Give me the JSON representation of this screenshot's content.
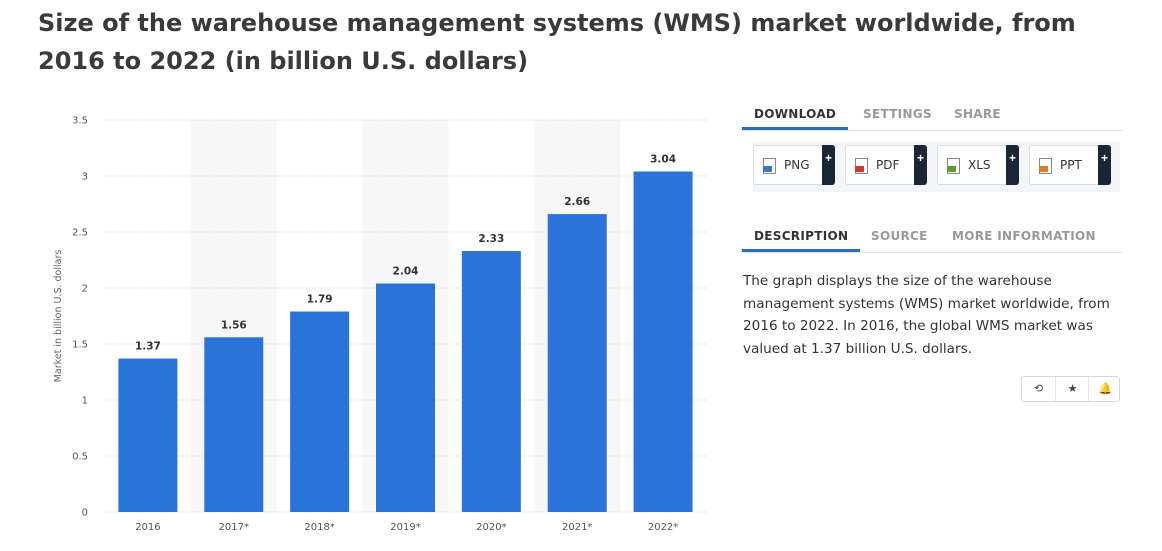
{
  "title": "Size of the warehouse management systems (WMS) market worldwide, from 2016 to 2022 (in billion U.S. dollars)",
  "chart_data": {
    "type": "bar",
    "categories": [
      "2016",
      "2017*",
      "2018*",
      "2019*",
      "2020*",
      "2021*",
      "2022*"
    ],
    "values": [
      1.37,
      1.56,
      1.79,
      2.04,
      2.33,
      2.66,
      3.04
    ],
    "value_labels": [
      "1.37",
      "1.56",
      "1.79",
      "2.04",
      "2.33",
      "2.66",
      "3.04"
    ],
    "ylabel": "Market in billion U.S. dollars",
    "ylim": [
      0,
      3.5
    ],
    "yticks": [
      0,
      0.5,
      1,
      1.5,
      2,
      2.5,
      3,
      3.5
    ],
    "ytick_labels": [
      "0",
      "0.5",
      "1",
      "1.5",
      "2",
      "2.5",
      "3",
      "3.5"
    ],
    "bar_color": "#2a74d9",
    "grid": "dotted-horizontal",
    "alternating_column_shading": true
  },
  "tabs_top": [
    {
      "label": "DOWNLOAD",
      "active": true
    },
    {
      "label": "SETTINGS",
      "active": false
    },
    {
      "label": "SHARE",
      "active": false
    }
  ],
  "downloads": [
    {
      "label": "PNG",
      "icon": "png-file-icon",
      "color": "#3a7abf"
    },
    {
      "label": "PDF",
      "icon": "pdf-file-icon",
      "color": "#d23b2f"
    },
    {
      "label": "XLS",
      "icon": "xls-file-icon",
      "color": "#5c9e31"
    },
    {
      "label": "PPT",
      "icon": "ppt-file-icon",
      "color": "#e07b26"
    }
  ],
  "plus_label": "+",
  "tabs_info": [
    {
      "label": "DESCRIPTION",
      "active": true
    },
    {
      "label": "SOURCE",
      "active": false
    },
    {
      "label": "MORE INFORMATION",
      "active": false
    }
  ],
  "description": "The graph displays the size of the warehouse management systems (WMS) market worldwide, from 2016 to 2022. In 2016, the global WMS market was valued at 1.37 billion U.S. dollars.",
  "actions": [
    {
      "icon": "history-icon",
      "glyph": "⟲"
    },
    {
      "icon": "star-icon",
      "glyph": "★"
    },
    {
      "icon": "bell-icon",
      "glyph": "🔔"
    }
  ]
}
